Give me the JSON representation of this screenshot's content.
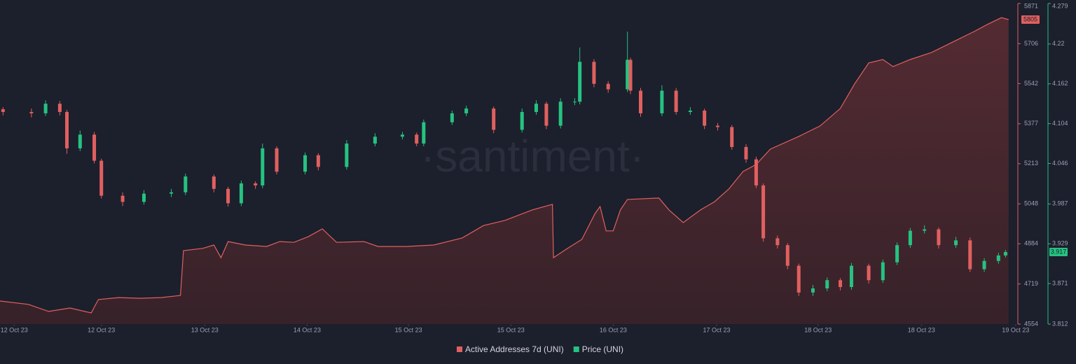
{
  "chart_data": {
    "type": "combo",
    "watermark": "·santiment·",
    "xlim": [
      0,
      100
    ],
    "xticks": [
      {
        "value": 1.4,
        "label": "12 Oct 23"
      },
      {
        "value": 10.0,
        "label": "12 Oct 23"
      },
      {
        "value": 20.2,
        "label": "13 Oct 23"
      },
      {
        "value": 30.3,
        "label": "14 Oct 23"
      },
      {
        "value": 40.3,
        "label": "15 Oct 23"
      },
      {
        "value": 50.4,
        "label": "15 Oct 23"
      },
      {
        "value": 60.5,
        "label": "16 Oct 23"
      },
      {
        "value": 70.7,
        "label": "17 Oct 23"
      },
      {
        "value": 80.7,
        "label": "18 Oct 23"
      },
      {
        "value": 90.9,
        "label": "18 Oct 23"
      },
      {
        "value": 100.2,
        "label": "19 Oct 23"
      }
    ],
    "ylim": [
      4554,
      5871
    ],
    "yticks": [
      4554,
      4719,
      4884,
      5048,
      5213,
      5377,
      5542,
      5706,
      5871
    ],
    "y2lim": [
      3.812,
      4.279
    ],
    "y2ticks": [
      3.812,
      3.871,
      3.929,
      3.987,
      4.046,
      4.104,
      4.162,
      4.22,
      4.279
    ],
    "series": [
      {
        "name": "Active Addresses 7d (UNI)",
        "type": "area",
        "color": "#e0605f",
        "x": [
          0,
          2.8,
          4.8,
          6.9,
          9.0,
          9.7,
          11.7,
          13.8,
          15.9,
          17.8,
          18.1,
          20.0,
          21.1,
          21.8,
          22.5,
          24.2,
          26.3,
          27.6,
          29.0,
          30.4,
          31.8,
          33.2,
          35.9,
          37.3,
          40.1,
          42.8,
          45.6,
          47.7,
          49.8,
          52.5,
          54.5,
          54.6,
          56.0,
          57.4,
          58.7,
          59.2,
          59.8,
          60.5,
          61.2,
          61.9,
          65.0,
          66.0,
          67.4,
          69.1,
          70.5,
          71.9,
          73.3,
          74.6,
          76.0,
          78.8,
          80.9,
          82.9,
          84.3,
          85.7,
          87.1,
          88.1,
          89.8,
          91.9,
          94.0,
          96.1,
          97.4,
          98.8,
          99.5
        ],
        "values": [
          4649,
          4635,
          4606,
          4620,
          4600,
          4655,
          4663,
          4660,
          4663,
          4672,
          4856,
          4865,
          4879,
          4827,
          4893,
          4879,
          4873,
          4893,
          4890,
          4913,
          4945,
          4890,
          4893,
          4873,
          4873,
          4879,
          4908,
          4959,
          4980,
          5023,
          5046,
          4827,
          4865,
          4902,
          5008,
          5037,
          4937,
          4937,
          5023,
          5066,
          5072,
          5023,
          4971,
          5023,
          5057,
          5109,
          5181,
          5210,
          5273,
          5325,
          5368,
          5440,
          5540,
          5627,
          5641,
          5612,
          5641,
          5670,
          5713,
          5756,
          5785,
          5813,
          5805
        ]
      },
      {
        "name": "Price (UNI)",
        "type": "candlestick",
        "axis": "y2",
        "color": "#26c281",
        "down_color": "#e0605f",
        "x": [
          0.3,
          3.1,
          4.5,
          5.9,
          6.6,
          7.9,
          9.3,
          10.0,
          12.1,
          14.2,
          16.9,
          18.3,
          21.1,
          22.5,
          23.8,
          25.2,
          25.9,
          27.3,
          30.1,
          31.4,
          34.2,
          37.0,
          39.7,
          41.1,
          41.8,
          44.6,
          46.0,
          48.7,
          51.5,
          52.9,
          53.9,
          55.3,
          56.7,
          57.2,
          58.6,
          60.0,
          61.9,
          62.2,
          63.2,
          65.3,
          66.7,
          68.1,
          69.5,
          70.8,
          72.2,
          73.6,
          74.6,
          75.3,
          76.7,
          77.7,
          78.8,
          80.2,
          81.6,
          82.9,
          84.0,
          85.7,
          87.1,
          88.5,
          89.8,
          91.2,
          92.6,
          94.3,
          95.7,
          97.1,
          98.5,
          99.2
        ],
        "open": [
          4.125,
          4.121,
          4.119,
          4.133,
          4.121,
          4.068,
          4.088,
          4.05,
          3.999,
          3.99,
          4.002,
          4.004,
          4.027,
          4.009,
          3.988,
          4.017,
          4.014,
          4.068,
          4.034,
          4.058,
          4.041,
          4.075,
          4.085,
          4.088,
          4.075,
          4.106,
          4.119,
          4.126,
          4.095,
          4.121,
          4.133,
          4.101,
          4.136,
          4.136,
          4.194,
          4.162,
          4.154,
          4.197,
          4.152,
          4.119,
          4.152,
          4.121,
          4.123,
          4.101,
          4.099,
          4.07,
          4.052,
          4.014,
          3.937,
          3.927,
          3.897,
          3.858,
          3.864,
          3.876,
          3.866,
          3.897,
          3.876,
          3.902,
          3.927,
          3.948,
          3.95,
          3.927,
          3.934,
          3.892,
          3.904,
          3.912
        ],
        "high": [
          4.128,
          4.126,
          4.138,
          4.137,
          4.124,
          4.094,
          4.092,
          4.053,
          4.004,
          4.007,
          4.009,
          4.031,
          4.03,
          4.012,
          4.021,
          4.02,
          4.075,
          4.071,
          4.062,
          4.061,
          4.08,
          4.09,
          4.092,
          4.091,
          4.11,
          4.123,
          4.13,
          4.129,
          4.126,
          4.138,
          4.136,
          4.141,
          4.141,
          4.215,
          4.198,
          4.166,
          4.238,
          4.2,
          4.156,
          4.16,
          4.156,
          4.128,
          4.126,
          4.105,
          4.102,
          4.074,
          4.056,
          4.017,
          3.941,
          3.93,
          3.9,
          3.869,
          3.88,
          3.879,
          3.901,
          3.9,
          3.906,
          3.931,
          3.952,
          3.956,
          3.953,
          3.939,
          3.938,
          3.908,
          3.916,
          3.92
        ],
        "low": [
          4.116,
          4.113,
          4.115,
          4.116,
          4.06,
          4.064,
          4.046,
          3.995,
          3.984,
          3.986,
          3.997,
          4.0,
          4.004,
          3.983,
          3.984,
          4.009,
          4.01,
          4.03,
          4.03,
          4.036,
          4.037,
          4.071,
          4.081,
          4.071,
          4.071,
          4.102,
          4.115,
          4.09,
          4.091,
          4.117,
          4.096,
          4.097,
          4.131,
          4.132,
          4.157,
          4.149,
          4.15,
          4.147,
          4.114,
          4.115,
          4.117,
          4.117,
          4.096,
          4.094,
          4.066,
          4.047,
          4.01,
          3.932,
          3.922,
          3.892,
          3.853,
          3.853,
          3.86,
          3.861,
          3.862,
          3.871,
          3.872,
          3.898,
          3.923,
          3.944,
          3.922,
          3.923,
          3.888,
          3.888,
          3.9,
          3.909
        ],
        "close": [
          4.121,
          4.119,
          4.133,
          4.121,
          4.068,
          4.088,
          4.05,
          3.999,
          3.99,
          4.002,
          4.004,
          4.027,
          4.009,
          3.988,
          4.017,
          4.014,
          4.068,
          4.034,
          4.058,
          4.041,
          4.075,
          4.085,
          4.088,
          4.075,
          4.106,
          4.119,
          4.126,
          4.095,
          4.121,
          4.133,
          4.101,
          4.136,
          4.136,
          4.194,
          4.162,
          4.154,
          4.197,
          4.152,
          4.119,
          4.152,
          4.121,
          4.123,
          4.101,
          4.099,
          4.07,
          4.052,
          4.014,
          3.937,
          3.927,
          3.897,
          3.858,
          3.864,
          3.876,
          3.866,
          3.897,
          3.876,
          3.902,
          3.927,
          3.948,
          3.95,
          3.927,
          3.934,
          3.892,
          3.904,
          3.912,
          3.917
        ]
      }
    ]
  }
}
